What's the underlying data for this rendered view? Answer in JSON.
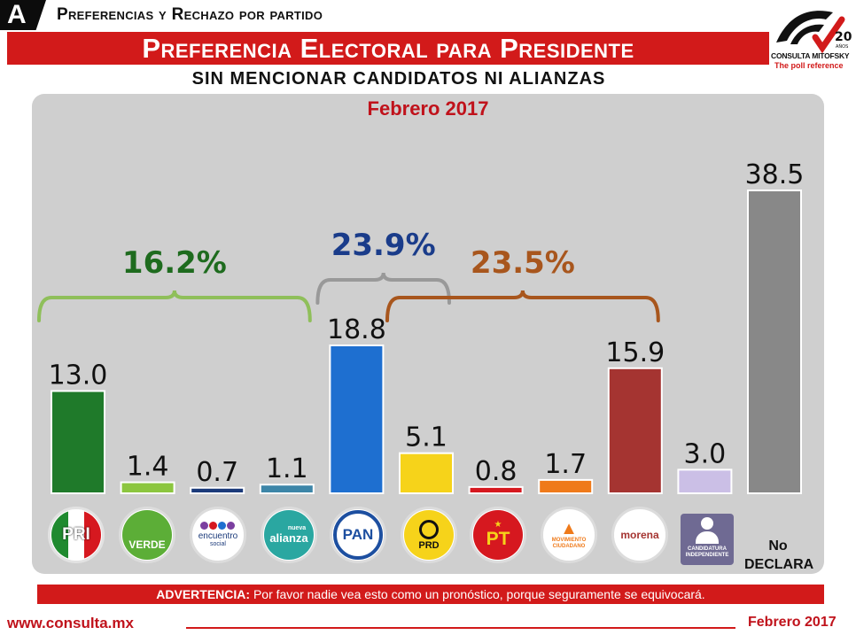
{
  "header": {
    "badge": "A",
    "section_title": "Preferencias y Rechazo por partido",
    "main_title": "Preferencia Electoral para Presidente",
    "subtitle": "SIN MENCIONAR CANDIDATOS NI ALIANZAS",
    "logo_name": "CONSULTA MITOFSKY",
    "logo_tagline": "The poll reference",
    "logo_years": "20",
    "logo_years_suffix": "AÑOS"
  },
  "chart_data": {
    "type": "bar",
    "title": "Febrero 2017",
    "categories": [
      "PRI",
      "VERDE",
      "encuentro social",
      "nueva alianza",
      "PAN",
      "PRD",
      "PT",
      "MOVIMIENTO CIUDADANO",
      "morena",
      "CANDIDATURA INDEPENDIENTE",
      "NO DECLARA"
    ],
    "values": [
      13.0,
      1.4,
      0.7,
      1.1,
      18.8,
      5.1,
      0.8,
      1.7,
      15.9,
      3.0,
      38.5
    ],
    "value_labels": [
      "13.0",
      "1.4",
      "0.7",
      "1.1",
      "18.8",
      "5.1",
      "0.8",
      "1.7",
      "15.9",
      "3.0",
      "38.5"
    ],
    "colors": [
      "#1f7a2a",
      "#8cc63f",
      "#1b3a7a",
      "#3d86a8",
      "#1e6fd0",
      "#f6d31a",
      "#d6181f",
      "#ef7a1a",
      "#a53431",
      "#cbbfe6",
      "#888888"
    ],
    "groups": [
      {
        "label": "16.2%",
        "from": 0,
        "to": 3,
        "color": "#8fbf5a",
        "text_color": "#1e6b1e"
      },
      {
        "label": "23.9%",
        "from": 4,
        "to": 5,
        "color": "#999999",
        "text_color": "#1a3c8a"
      },
      {
        "label": "23.5%",
        "from": 5,
        "to": 8,
        "color": "#a8561d",
        "text_color": "#a8561d"
      }
    ],
    "ylim": [
      0,
      38.5
    ]
  },
  "icons": {
    "pri": "PRI",
    "verde": "VERDE",
    "encuentro_1": "encuentro",
    "encuentro_2": "social",
    "alianza_1": "nueva",
    "alianza_2": "alianza",
    "pan": "PAN",
    "prd": "PRD",
    "pt": "PT",
    "mc_1": "MOVIMIENTO",
    "mc_2": "CIUDADANO",
    "morena": "morena",
    "indep_1": "CANDIDATURA",
    "indep_2": "INDEPENDIENTE",
    "no_declara": "No DECLARA"
  },
  "warning": {
    "bold": "ADVERTENCIA:",
    "text": " Por favor nadie vea esto como un pronóstico, porque seguramente se equivocará."
  },
  "footer": {
    "url": "www.consulta.mx",
    "date": "Febrero 2017"
  }
}
